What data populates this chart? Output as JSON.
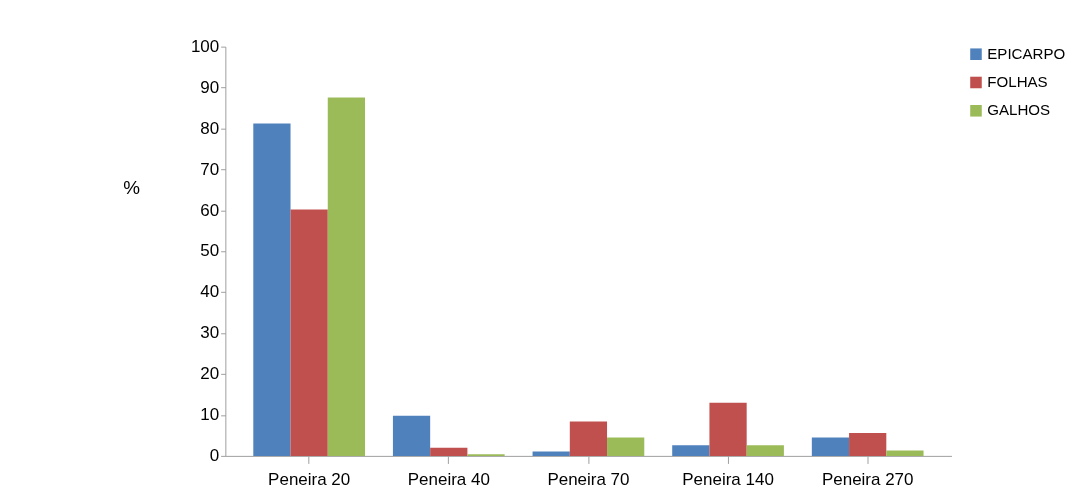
{
  "chart_data": {
    "type": "bar",
    "ylabel": "%",
    "categories": [
      "Peneira 20",
      "Peneira 40",
      "Peneira 70",
      "Peneira 140",
      "Peneira 270"
    ],
    "series": [
      {
        "name": "EPICARPO",
        "color": "#4f81bd",
        "values": [
          81.2,
          9.8,
          1.1,
          2.6,
          4.5
        ]
      },
      {
        "name": "FOLHAS",
        "color": "#c0504d",
        "values": [
          60.2,
          2.0,
          8.4,
          13.0,
          5.6
        ]
      },
      {
        "name": "GALHOS",
        "color": "#9bbb59",
        "values": [
          87.6,
          0.4,
          4.5,
          2.6,
          1.3
        ]
      }
    ],
    "ylim": [
      0,
      100
    ],
    "yticks": [
      0,
      10,
      20,
      30,
      40,
      50,
      60,
      70,
      80,
      90,
      100
    ],
    "grid": false,
    "legend": "right"
  }
}
